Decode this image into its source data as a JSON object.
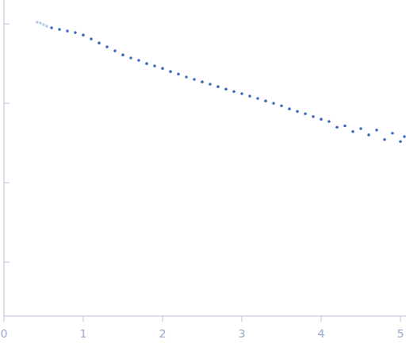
{
  "chart_data": {
    "type": "scatter",
    "log": "y",
    "tick_labels": "x",
    "marker": "circle",
    "xlim": [
      0,
      5.07
    ],
    "xticks": [
      0,
      1,
      2,
      3,
      4,
      5
    ],
    "ylim": [
      0.0002,
      2
    ],
    "yticks": [
      1,
      0.1,
      0.01,
      0.001
    ],
    "series": [
      {
        "color": "#b4c8ea",
        "x": [
          0.42,
          0.46,
          0.5,
          0.54
        ],
        "values": [
          1.047,
          1.023,
          0.977,
          0.933
        ]
      },
      {
        "color": "#3b66bb",
        "x": [
          0.6,
          0.7,
          0.8,
          0.9,
          1.0,
          1.1,
          1.2,
          1.3,
          1.4,
          1.5,
          1.6,
          1.7,
          1.8,
          1.9,
          2.0,
          2.1,
          2.2,
          2.3,
          2.4,
          2.5,
          2.6,
          2.7,
          2.8,
          2.9,
          3.0,
          3.1,
          3.2,
          3.3,
          3.4,
          3.5,
          3.6,
          3.7,
          3.8,
          3.9,
          4.0,
          4.1,
          4.2,
          4.3,
          4.4,
          4.5,
          4.6,
          4.7,
          4.8,
          4.9,
          5.0,
          5.05
        ],
        "values": [
          0.891,
          0.851,
          0.813,
          0.776,
          0.724,
          0.646,
          0.575,
          0.513,
          0.457,
          0.407,
          0.372,
          0.347,
          0.316,
          0.295,
          0.275,
          0.251,
          0.234,
          0.214,
          0.2,
          0.186,
          0.174,
          0.162,
          0.151,
          0.141,
          0.132,
          0.123,
          0.115,
          0.107,
          0.1,
          0.093,
          0.085,
          0.079,
          0.074,
          0.068,
          0.063,
          0.059,
          0.05,
          0.052,
          0.044,
          0.048,
          0.04,
          0.046,
          0.035,
          0.042,
          0.033,
          0.038
        ]
      }
    ]
  }
}
